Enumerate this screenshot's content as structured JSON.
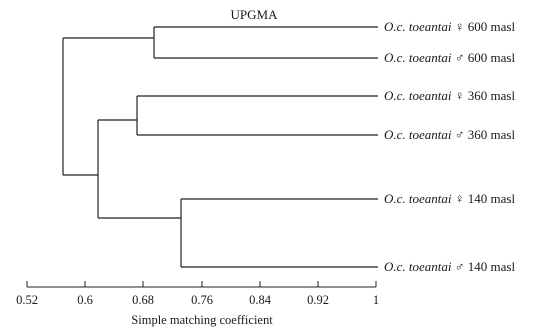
{
  "figure": {
    "title": "UPGMA",
    "axis_title": "Simple matching coefficient",
    "x_ticks": [
      "0.52",
      "0.6",
      "0.68",
      "0.76",
      "0.84",
      "0.92",
      "1"
    ]
  },
  "leaves": [
    {
      "species": "O.c. toeantai",
      "sex": "♀",
      "elevation": "600 masl"
    },
    {
      "species": "O.c. toeantai",
      "sex": "♂",
      "elevation": "600 masl"
    },
    {
      "species": "O.c. toeantai",
      "sex": "♀",
      "elevation": "360 masl"
    },
    {
      "species": "O.c. toeantai",
      "sex": "♂",
      "elevation": "360 masl"
    },
    {
      "species": "O.c. toeantai",
      "sex": "♀",
      "elevation": "140 masl"
    },
    {
      "species": "O.c. toeantai",
      "sex": "♂",
      "elevation": "140 masl"
    }
  ]
}
